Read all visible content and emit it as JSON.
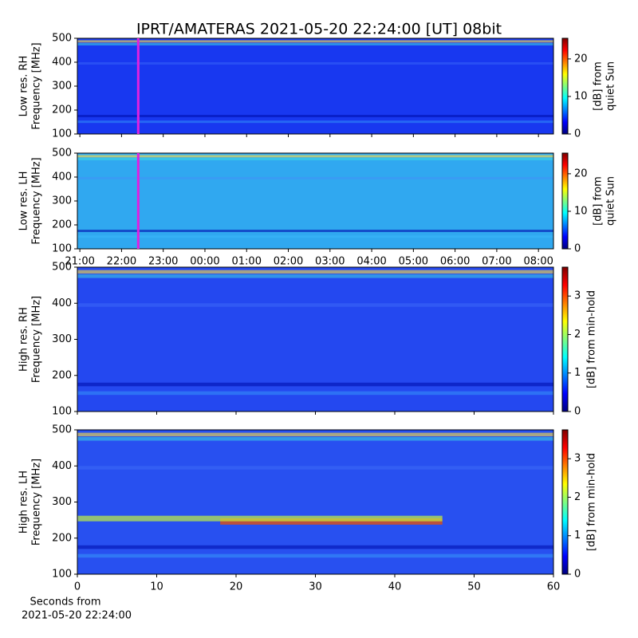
{
  "title": "IPRT/AMATERAS 2021-05-20 22:24:00 [UT]   08bit",
  "x_label": [
    "Seconds from",
    "2021-05-20 22:24:00"
  ],
  "chart_data": [
    {
      "type": "heatmap",
      "y_label": [
        "Low res. RH",
        "Frequency [MHz]"
      ],
      "ylim": [
        100,
        500
      ],
      "yticks": [
        100,
        200,
        300,
        400,
        500
      ],
      "xlim": [
        -0.06,
        11.36
      ],
      "xticks": [
        {
          "value": 0,
          "label": "21:00"
        },
        {
          "value": 1,
          "label": "22:00"
        },
        {
          "value": 2,
          "label": "23:00"
        },
        {
          "value": 3,
          "label": "00:00"
        },
        {
          "value": 4,
          "label": "01:00"
        },
        {
          "value": 5,
          "label": "02:00"
        },
        {
          "value": 6,
          "label": "03:00"
        },
        {
          "value": 7,
          "label": "04:00"
        },
        {
          "value": 8,
          "label": "05:00"
        },
        {
          "value": 9,
          "label": "06:00"
        },
        {
          "value": 10,
          "label": "07:00"
        },
        {
          "value": 11,
          "label": "08:00"
        }
      ],
      "show_xtick_labels": false,
      "marker_x": 1.4,
      "marker_color": "#e020e0",
      "background": "#1838f0",
      "colorbar": {
        "label": [
          "[dB] from",
          "quiet Sun"
        ],
        "lim": [
          0,
          25.5
        ],
        "ticks": [
          0,
          10,
          20
        ],
        "colormap": "jet"
      }
    },
    {
      "type": "heatmap",
      "y_label": [
        "Low res. LH",
        "Frequency [MHz]"
      ],
      "ylim": [
        100,
        500
      ],
      "yticks": [
        100,
        200,
        300,
        400,
        500
      ],
      "xlim": [
        -0.06,
        11.36
      ],
      "xticks": [
        {
          "value": 0,
          "label": "21:00"
        },
        {
          "value": 1,
          "label": "22:00"
        },
        {
          "value": 2,
          "label": "23:00"
        },
        {
          "value": 3,
          "label": "00:00"
        },
        {
          "value": 4,
          "label": "01:00"
        },
        {
          "value": 5,
          "label": "02:00"
        },
        {
          "value": 6,
          "label": "03:00"
        },
        {
          "value": 7,
          "label": "04:00"
        },
        {
          "value": 8,
          "label": "05:00"
        },
        {
          "value": 9,
          "label": "06:00"
        },
        {
          "value": 10,
          "label": "07:00"
        },
        {
          "value": 11,
          "label": "08:00"
        }
      ],
      "show_xtick_labels": true,
      "marker_x": 1.4,
      "marker_color": "#e020e0",
      "background": "#30a8f0",
      "colorbar": {
        "label": [
          "[dB] from",
          "quiet Sun"
        ],
        "lim": [
          0,
          25.5
        ],
        "ticks": [
          0,
          10,
          20
        ],
        "colormap": "jet"
      }
    },
    {
      "type": "heatmap",
      "y_label": [
        "High res. RH",
        "Frequency [MHz]"
      ],
      "ylim": [
        100,
        500
      ],
      "yticks": [
        100,
        200,
        300,
        400,
        500
      ],
      "xlim": [
        0,
        60
      ],
      "xticks": [
        0,
        10,
        20,
        30,
        40,
        50,
        60
      ],
      "show_xtick_labels": false,
      "background": "#2448f0",
      "colorbar": {
        "label": [
          "[dB] from min-hold"
        ],
        "lim": [
          0,
          3.75
        ],
        "ticks": [
          0,
          1,
          2,
          3
        ],
        "colormap": "jet"
      }
    },
    {
      "type": "heatmap",
      "y_label": [
        "High res. LH",
        "Frequency [MHz]"
      ],
      "ylim": [
        100,
        500
      ],
      "yticks": [
        100,
        200,
        300,
        400,
        500
      ],
      "xlim": [
        0,
        60
      ],
      "xticks": [
        0,
        10,
        20,
        30,
        40,
        50,
        60
      ],
      "show_xtick_labels": true,
      "background": "#2850f0",
      "colorbar": {
        "label": [
          "[dB] from min-hold"
        ],
        "lim": [
          0,
          3.75
        ],
        "ticks": [
          0,
          1,
          2,
          3
        ],
        "colormap": "jet"
      }
    }
  ]
}
